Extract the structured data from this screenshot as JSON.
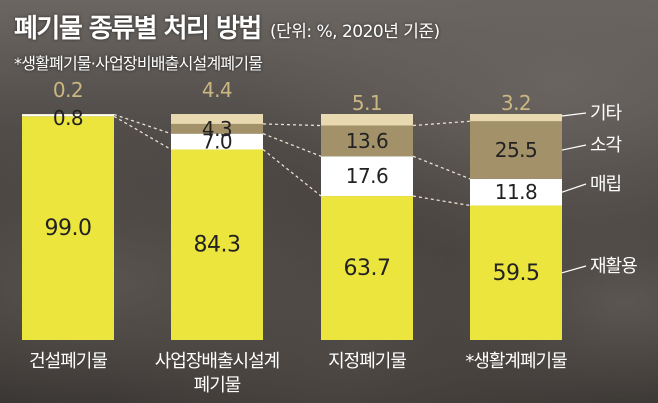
{
  "header": {
    "title": "폐기물 종류별 처리 방법",
    "unit_note": "(단위: %, 2020년 기준)",
    "footnote": "*생활폐기물·사업장비배출시설계폐기물"
  },
  "colors": {
    "재활용": "#ece53e",
    "매립": "#ffffff",
    "소각": "#a3916a",
    "기타": "#e8d9b0",
    "top_label": "#cbb781",
    "label_light": "#ffffff",
    "label_dark": "#222222"
  },
  "chart_data": {
    "type": "bar",
    "stacked": true,
    "categories": [
      "건설폐기물",
      "사업장배출시설계\n폐기물",
      "지정폐기물",
      "*생활계폐기물"
    ],
    "series": [
      {
        "name": "재활용",
        "values": [
          99.0,
          84.3,
          63.7,
          59.5
        ]
      },
      {
        "name": "매립",
        "values": [
          0.8,
          7.0,
          17.6,
          11.8
        ]
      },
      {
        "name": "소각",
        "values": [
          null,
          4.3,
          13.6,
          25.5
        ]
      },
      {
        "name": "기타",
        "values": [
          0.2,
          4.4,
          5.1,
          3.2
        ]
      }
    ],
    "legend_placement": "right",
    "ylim": [
      0,
      100
    ],
    "grid": false
  }
}
